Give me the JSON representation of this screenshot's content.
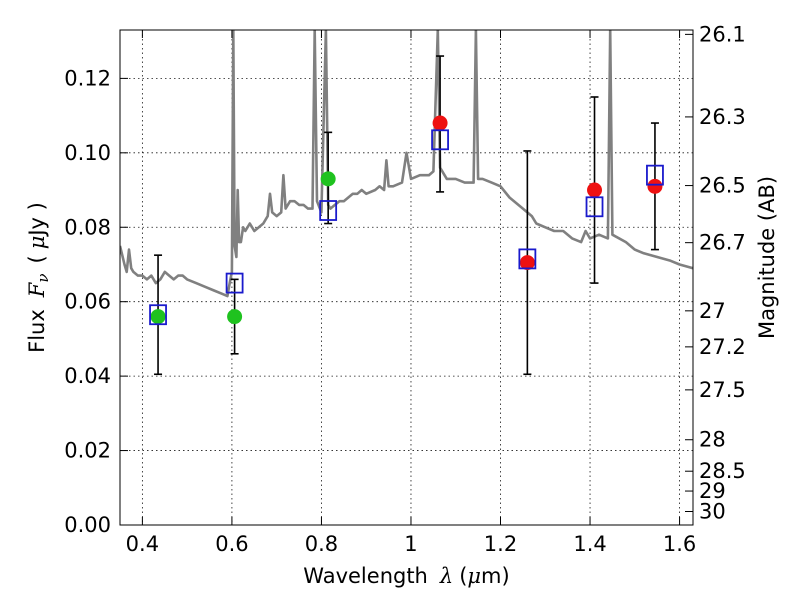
{
  "chart_data": {
    "type": "scatter",
    "x_axis": {
      "label_text": "Wavelength",
      "label_symbol": "λ",
      "label_unit_prefix": "(",
      "label_unit_mu": "μ",
      "label_unit_suffix": "m)",
      "range": [
        0.35,
        1.63
      ],
      "ticks": [
        0.4,
        0.6,
        0.8,
        1.0,
        1.2,
        1.4,
        1.6
      ],
      "tick_labels": [
        "0.4",
        "0.6",
        "0.8",
        "1",
        "1.2",
        "1.4",
        "1.6"
      ]
    },
    "y_axis_left": {
      "label_text": "Flux",
      "label_symbol_F": "F",
      "label_symbol_nu": "ν",
      "label_unit_prefix": "(",
      "label_unit_mu": "μ",
      "label_unit_suffix": "Jy )",
      "range": [
        0.0,
        0.133
      ],
      "ticks": [
        0.0,
        0.02,
        0.04,
        0.06,
        0.08,
        0.1,
        0.12
      ],
      "tick_labels": [
        "0.00",
        "0.02",
        "0.04",
        "0.06",
        "0.08",
        "0.10",
        "0.12"
      ]
    },
    "y_axis_right": {
      "label": "Magnitude (AB)",
      "scale": "ab_magnitude",
      "ticks": [
        26.1,
        26.3,
        26.5,
        26.7,
        27.0,
        27.2,
        27.5,
        28.0,
        28.5,
        29.0,
        30.0
      ],
      "tick_labels": [
        "26.1",
        "26.3",
        "26.5",
        "26.7",
        "27",
        "27.2",
        "27.5",
        "28",
        "28.5",
        "29",
        "30"
      ]
    },
    "grid": true,
    "colors": {
      "spectrum": "#808080",
      "green_points": "#1fc21f",
      "red_points": "#ee1111",
      "model_boxes": "#1a1acc",
      "errorbars": "#000000"
    },
    "series": [
      {
        "role": "model_spectrum",
        "points": [
          [
            0.35,
            0.075
          ],
          [
            0.36,
            0.07
          ],
          [
            0.365,
            0.068
          ],
          [
            0.37,
            0.074
          ],
          [
            0.375,
            0.069
          ],
          [
            0.38,
            0.068
          ],
          [
            0.39,
            0.067
          ],
          [
            0.4,
            0.067
          ],
          [
            0.41,
            0.066
          ],
          [
            0.42,
            0.067
          ],
          [
            0.43,
            0.065
          ],
          [
            0.44,
            0.066
          ],
          [
            0.45,
            0.068
          ],
          [
            0.46,
            0.067
          ],
          [
            0.47,
            0.066
          ],
          [
            0.48,
            0.067
          ],
          [
            0.49,
            0.067
          ],
          [
            0.5,
            0.066
          ],
          [
            0.52,
            0.065
          ],
          [
            0.54,
            0.064
          ],
          [
            0.56,
            0.063
          ],
          [
            0.58,
            0.062
          ],
          [
            0.59,
            0.0615
          ],
          [
            0.595,
            0.065
          ],
          [
            0.6,
            0.068
          ],
          [
            0.603,
            0.133
          ],
          [
            0.606,
            0.075
          ],
          [
            0.61,
            0.072
          ],
          [
            0.613,
            0.09
          ],
          [
            0.616,
            0.076
          ],
          [
            0.62,
            0.076
          ],
          [
            0.625,
            0.08
          ],
          [
            0.63,
            0.079
          ],
          [
            0.64,
            0.081
          ],
          [
            0.65,
            0.079
          ],
          [
            0.66,
            0.08
          ],
          [
            0.67,
            0.081
          ],
          [
            0.68,
            0.083
          ],
          [
            0.685,
            0.089
          ],
          [
            0.69,
            0.084
          ],
          [
            0.7,
            0.083
          ],
          [
            0.71,
            0.084
          ],
          [
            0.715,
            0.094
          ],
          [
            0.72,
            0.085
          ],
          [
            0.73,
            0.087
          ],
          [
            0.74,
            0.087
          ],
          [
            0.75,
            0.086
          ],
          [
            0.76,
            0.086
          ],
          [
            0.77,
            0.085
          ],
          [
            0.78,
            0.085
          ],
          [
            0.785,
            0.133
          ],
          [
            0.79,
            0.087
          ],
          [
            0.8,
            0.084
          ],
          [
            0.81,
            0.133
          ],
          [
            0.815,
            0.086
          ],
          [
            0.82,
            0.085
          ],
          [
            0.83,
            0.086
          ],
          [
            0.84,
            0.087
          ],
          [
            0.85,
            0.087
          ],
          [
            0.86,
            0.088
          ],
          [
            0.87,
            0.089
          ],
          [
            0.88,
            0.089
          ],
          [
            0.89,
            0.09
          ],
          [
            0.9,
            0.089
          ],
          [
            0.92,
            0.09
          ],
          [
            0.93,
            0.091
          ],
          [
            0.94,
            0.09
          ],
          [
            0.945,
            0.098
          ],
          [
            0.95,
            0.091
          ],
          [
            0.96,
            0.091
          ],
          [
            0.98,
            0.092
          ],
          [
            0.99,
            0.1
          ],
          [
            1.0,
            0.093
          ],
          [
            1.02,
            0.094
          ],
          [
            1.04,
            0.094
          ],
          [
            1.05,
            0.095
          ],
          [
            1.06,
            0.133
          ],
          [
            1.065,
            0.096
          ],
          [
            1.08,
            0.093
          ],
          [
            1.1,
            0.093
          ],
          [
            1.12,
            0.092
          ],
          [
            1.14,
            0.092
          ],
          [
            1.145,
            0.133
          ],
          [
            1.15,
            0.093
          ],
          [
            1.16,
            0.093
          ],
          [
            1.18,
            0.092
          ],
          [
            1.2,
            0.091
          ],
          [
            1.22,
            0.088
          ],
          [
            1.25,
            0.085
          ],
          [
            1.27,
            0.083
          ],
          [
            1.28,
            0.081
          ],
          [
            1.3,
            0.08
          ],
          [
            1.32,
            0.079
          ],
          [
            1.34,
            0.079
          ],
          [
            1.36,
            0.077
          ],
          [
            1.38,
            0.076
          ],
          [
            1.39,
            0.079
          ],
          [
            1.4,
            0.077
          ],
          [
            1.42,
            0.078
          ],
          [
            1.44,
            0.077
          ],
          [
            1.445,
            0.133
          ],
          [
            1.45,
            0.078
          ],
          [
            1.48,
            0.076
          ],
          [
            1.5,
            0.074
          ],
          [
            1.52,
            0.073
          ],
          [
            1.55,
            0.072
          ],
          [
            1.58,
            0.071
          ],
          [
            1.6,
            0.07
          ],
          [
            1.63,
            0.069
          ]
        ]
      },
      {
        "role": "observed_green",
        "color": "green",
        "points": [
          {
            "x": 0.435,
            "y": 0.056,
            "err_lo": 0.0405,
            "err_hi": 0.0725
          },
          {
            "x": 0.606,
            "y": 0.056,
            "err_lo": 0.046,
            "err_hi": 0.066
          },
          {
            "x": 0.815,
            "y": 0.093,
            "err_lo": 0.081,
            "err_hi": 0.1055
          }
        ]
      },
      {
        "role": "observed_red",
        "color": "red",
        "points": [
          {
            "x": 1.065,
            "y": 0.108,
            "err_lo": 0.0895,
            "err_hi": 0.126
          },
          {
            "x": 1.26,
            "y": 0.0705,
            "err_lo": 0.0405,
            "err_hi": 0.1005
          },
          {
            "x": 1.41,
            "y": 0.09,
            "err_lo": 0.065,
            "err_hi": 0.115
          },
          {
            "x": 1.545,
            "y": 0.091,
            "err_lo": 0.074,
            "err_hi": 0.108
          }
        ]
      },
      {
        "role": "model_bandpass",
        "marker": "open_square",
        "points": [
          {
            "x": 0.435,
            "y": 0.0565
          },
          {
            "x": 0.606,
            "y": 0.065
          },
          {
            "x": 0.815,
            "y": 0.0845
          },
          {
            "x": 1.065,
            "y": 0.1035
          },
          {
            "x": 1.26,
            "y": 0.0715
          },
          {
            "x": 1.41,
            "y": 0.0855
          },
          {
            "x": 1.545,
            "y": 0.094
          }
        ]
      }
    ]
  }
}
